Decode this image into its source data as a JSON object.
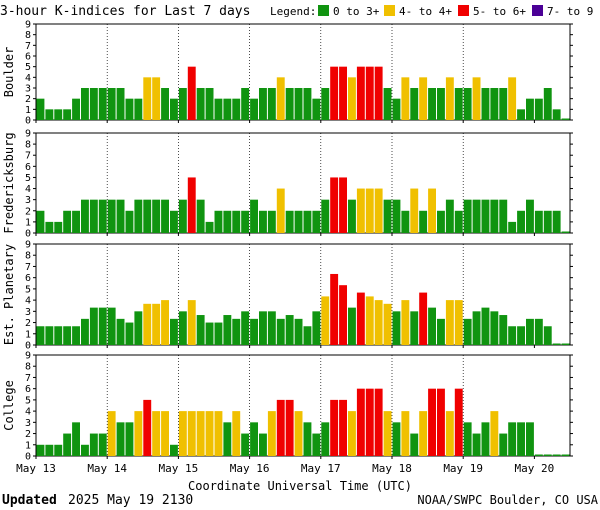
{
  "chart_data": {
    "type": "bar",
    "title": "3-hour K-indices for Last 7 days",
    "legend_title": "Legend:",
    "legend": [
      {
        "label": "0 to 3+",
        "color": "#109410"
      },
      {
        "label": "4- to 4+",
        "color": "#f0c000"
      },
      {
        "label": "5- to 6+",
        "color": "#f00000"
      },
      {
        "label": "7- to 9",
        "color": "#4b0096"
      }
    ],
    "y_ticks": [
      "0",
      "1",
      "2",
      "3",
      "4",
      "5",
      "6",
      "7",
      "8",
      "9"
    ],
    "ylim": [
      0,
      9
    ],
    "x_tick_labels": [
      "May 13",
      "May 14",
      "May 15",
      "May 16",
      "May 17",
      "May 18",
      "May 19",
      "May 20"
    ],
    "xlabel": "Coordinate Universal Time (UTC)",
    "bins_per_day": 8,
    "series": [
      {
        "name": "Boulder",
        "values": [
          2,
          1,
          1,
          1,
          2,
          3,
          3,
          3,
          3,
          3,
          2,
          2,
          4,
          4,
          3,
          2,
          3,
          5,
          3,
          3,
          2,
          2,
          2,
          3,
          2,
          3,
          3,
          4,
          3,
          3,
          3,
          2,
          3,
          5,
          5,
          4,
          5,
          5,
          5,
          3,
          2,
          4,
          3,
          4,
          3,
          3,
          4,
          3,
          3,
          4,
          3,
          3,
          3,
          4,
          1,
          2,
          2,
          3,
          1,
          0
        ]
      },
      {
        "name": "Fredericksburg",
        "values": [
          2,
          1,
          1,
          2,
          2,
          3,
          3,
          3,
          3,
          3,
          2,
          3,
          3,
          3,
          3,
          2,
          3,
          5,
          3,
          1,
          2,
          2,
          2,
          2,
          3,
          2,
          2,
          4,
          2,
          2,
          2,
          2,
          3,
          5,
          5,
          3,
          4,
          4,
          4,
          3,
          3,
          2,
          4,
          2,
          4,
          2,
          3,
          2,
          3,
          3,
          3,
          3,
          3,
          1,
          2,
          3,
          2,
          2,
          2,
          0
        ]
      },
      {
        "name": "Est. Planetary",
        "values": [
          1.67,
          1.67,
          1.67,
          1.67,
          1.67,
          2.33,
          3.33,
          3.33,
          3.33,
          2.33,
          2,
          3,
          3.67,
          3.67,
          4,
          2.33,
          3,
          4,
          2.67,
          2,
          2,
          2.67,
          2.33,
          3,
          2.33,
          3,
          3,
          2.33,
          2.67,
          2.33,
          1.67,
          3,
          4.33,
          6.33,
          5.33,
          3.33,
          4.67,
          4.33,
          4,
          3.67,
          3,
          4,
          3,
          4.67,
          3.33,
          2.33,
          4,
          4,
          2.33,
          3,
          3.33,
          3,
          2.67,
          1.67,
          1.67,
          2.33,
          2.33,
          1.67,
          0,
          0
        ]
      },
      {
        "name": "College",
        "values": [
          1,
          1,
          1,
          2,
          3,
          1,
          2,
          2,
          4,
          3,
          3,
          4,
          5,
          4,
          4,
          1,
          4,
          4,
          4,
          4,
          4,
          3,
          4,
          2,
          3,
          2,
          4,
          5,
          5,
          4,
          3,
          2,
          3,
          5,
          5,
          4,
          6,
          6,
          6,
          4,
          3,
          4,
          2,
          4,
          6,
          6,
          4,
          6,
          3,
          2,
          3,
          4,
          2,
          3,
          3,
          3,
          0,
          0,
          0,
          0
        ]
      }
    ]
  },
  "footer": {
    "updated_label": "Updated",
    "updated_value": "2025 May 19 2130",
    "source": "NOAA/SWPC Boulder, CO USA"
  }
}
